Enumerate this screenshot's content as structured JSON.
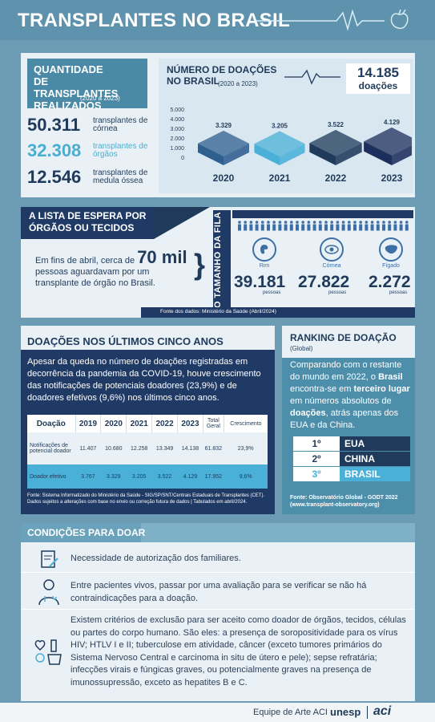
{
  "header": {
    "title": "TRANSPLANTES NO BRASIL"
  },
  "transplants": {
    "title": "QUANTIDADE DE TRANSPLANTES REALIZADOS",
    "period": "(2020 a 2023)",
    "items": [
      {
        "number": "50.311",
        "label": "transplantes de córnea",
        "color": "#1f3a5a"
      },
      {
        "number": "32.308",
        "label": "transplantes de órgãos",
        "color": "#4aaed0"
      },
      {
        "number": "12.546",
        "label": "transplantes de medula óssea",
        "color": "#1f3a5a"
      }
    ]
  },
  "donations": {
    "title": "NÚMERO DE DOAÇÕES NO BRASIL",
    "period": "(2020 a 2023)",
    "total_number": "14.185",
    "total_label": "doações",
    "chart_data": {
      "type": "bar",
      "categories": [
        "2020",
        "2021",
        "2022",
        "2023"
      ],
      "values": [
        3329,
        3205,
        3522,
        4129
      ],
      "value_labels": [
        "3.329",
        "3.205",
        "3.522",
        "4.129"
      ],
      "y_ticks": [
        "5.000",
        "4.000",
        "3.000",
        "2.000",
        "1.000",
        "0"
      ],
      "ylim": [
        0,
        5000
      ],
      "colors": [
        "#2f5f8f",
        "#4ab0d8",
        "#1f3a5a",
        "#1c2f5c"
      ]
    }
  },
  "waitlist": {
    "title": "A LISTA DE ESPERA POR ÓRGÃOS OU TECIDOS",
    "text_before": "Em fins de abril, cerca de",
    "highlight": "70 mil",
    "text_after": "pessoas aguardavam por um transplante de órgão no Brasil.",
    "side_title": "O TAMANHO DA FILA",
    "organs": [
      {
        "name": "Rim",
        "number": "39.181",
        "unit": "pessoas",
        "icon": "kidney-icon"
      },
      {
        "name": "Córnea",
        "number": "27.822",
        "unit": "pessoas",
        "icon": "eye-icon"
      },
      {
        "name": "Fígado",
        "number": "2.272",
        "unit": "pessoas",
        "icon": "liver-icon"
      }
    ],
    "source": "Fonte dos dados: Ministério da Saúde  (Abril/2024)"
  },
  "five_years": {
    "title": "DOAÇÕES NOS ÚLTIMOS CINCO ANOS",
    "text": "Apesar da queda no número de doações registradas em decorrência da pandemia da COVID-19, houve crescimento das notificações de potenciais doadores (23,9%) e de doadores efetivos (9,6%) nos últimos cinco anos.",
    "table": {
      "headers": [
        "Doação",
        "2019",
        "2020",
        "2021",
        "2022",
        "2023",
        "Total Geral",
        "Crescimento"
      ],
      "rows": [
        [
          "Notificações de potencial doador",
          "11.407",
          "10.680",
          "12.258",
          "13.349",
          "14.138",
          "61.832",
          "23,9%"
        ],
        [
          "Doador efetivo",
          "3.767",
          "3.329",
          "3.205",
          "3.522",
          "4.129",
          "17.952",
          "9,6%"
        ]
      ]
    },
    "source": "Fonte: Sistema Informatizado do Ministério da Saúde - SIG/SP/SNT/Centrais Estaduais de Transplantes (CET). Dados sujeitos a alterações com base no envio ou correção futura de dados | Tabulados em abril/2024."
  },
  "ranking": {
    "title": "RANKING DE DOAÇÃO",
    "subtitle": "(Global)",
    "text_parts": [
      "Comparando com o restante do mundo em 2022, o ",
      "Brasil",
      " encontra-se em ",
      "terceiro lugar",
      " em números absolutos de ",
      "doações",
      ", atrás apenas dos EUA e da China."
    ],
    "positions": [
      {
        "rank": "1º",
        "country": "EUA"
      },
      {
        "rank": "2º",
        "country": "CHINA"
      },
      {
        "rank": "3º",
        "country": "BRASIL"
      }
    ],
    "source": "Fonte: Observatório Global - GODT 2022 (www.transplant-observatory.org)"
  },
  "conditions": {
    "title": "CONDIÇÕES PARA DOAR",
    "items": [
      {
        "icon": "document-icon",
        "text": "Necessidade de autorização dos familiares."
      },
      {
        "icon": "doctor-icon",
        "text": "Entre pacientes vivos, passar por uma avaliação para se verificar se não há contraindicações para a doação."
      },
      {
        "icon": "medical-exam-icon",
        "text": "Existem critérios de exclusão para ser aceito como doador de órgãos, tecidos, células ou partes do corpo humano. São eles: a presença de soropositividade para os vírus HIV; HTLV I e II;  tuberculose em atividade, câncer (exceto tumores primários do Sistema Nervoso Central e carcinoma in situ de útero e pele); sepse refratária; infecções virais e fúngicas graves, ou potencialmente graves na presença de imunossupressão, exceto as hepatites B e C."
      }
    ]
  },
  "footer": {
    "credit": "Equipe de Arte ACI",
    "logo1": "unesp",
    "logo2": "aci"
  }
}
